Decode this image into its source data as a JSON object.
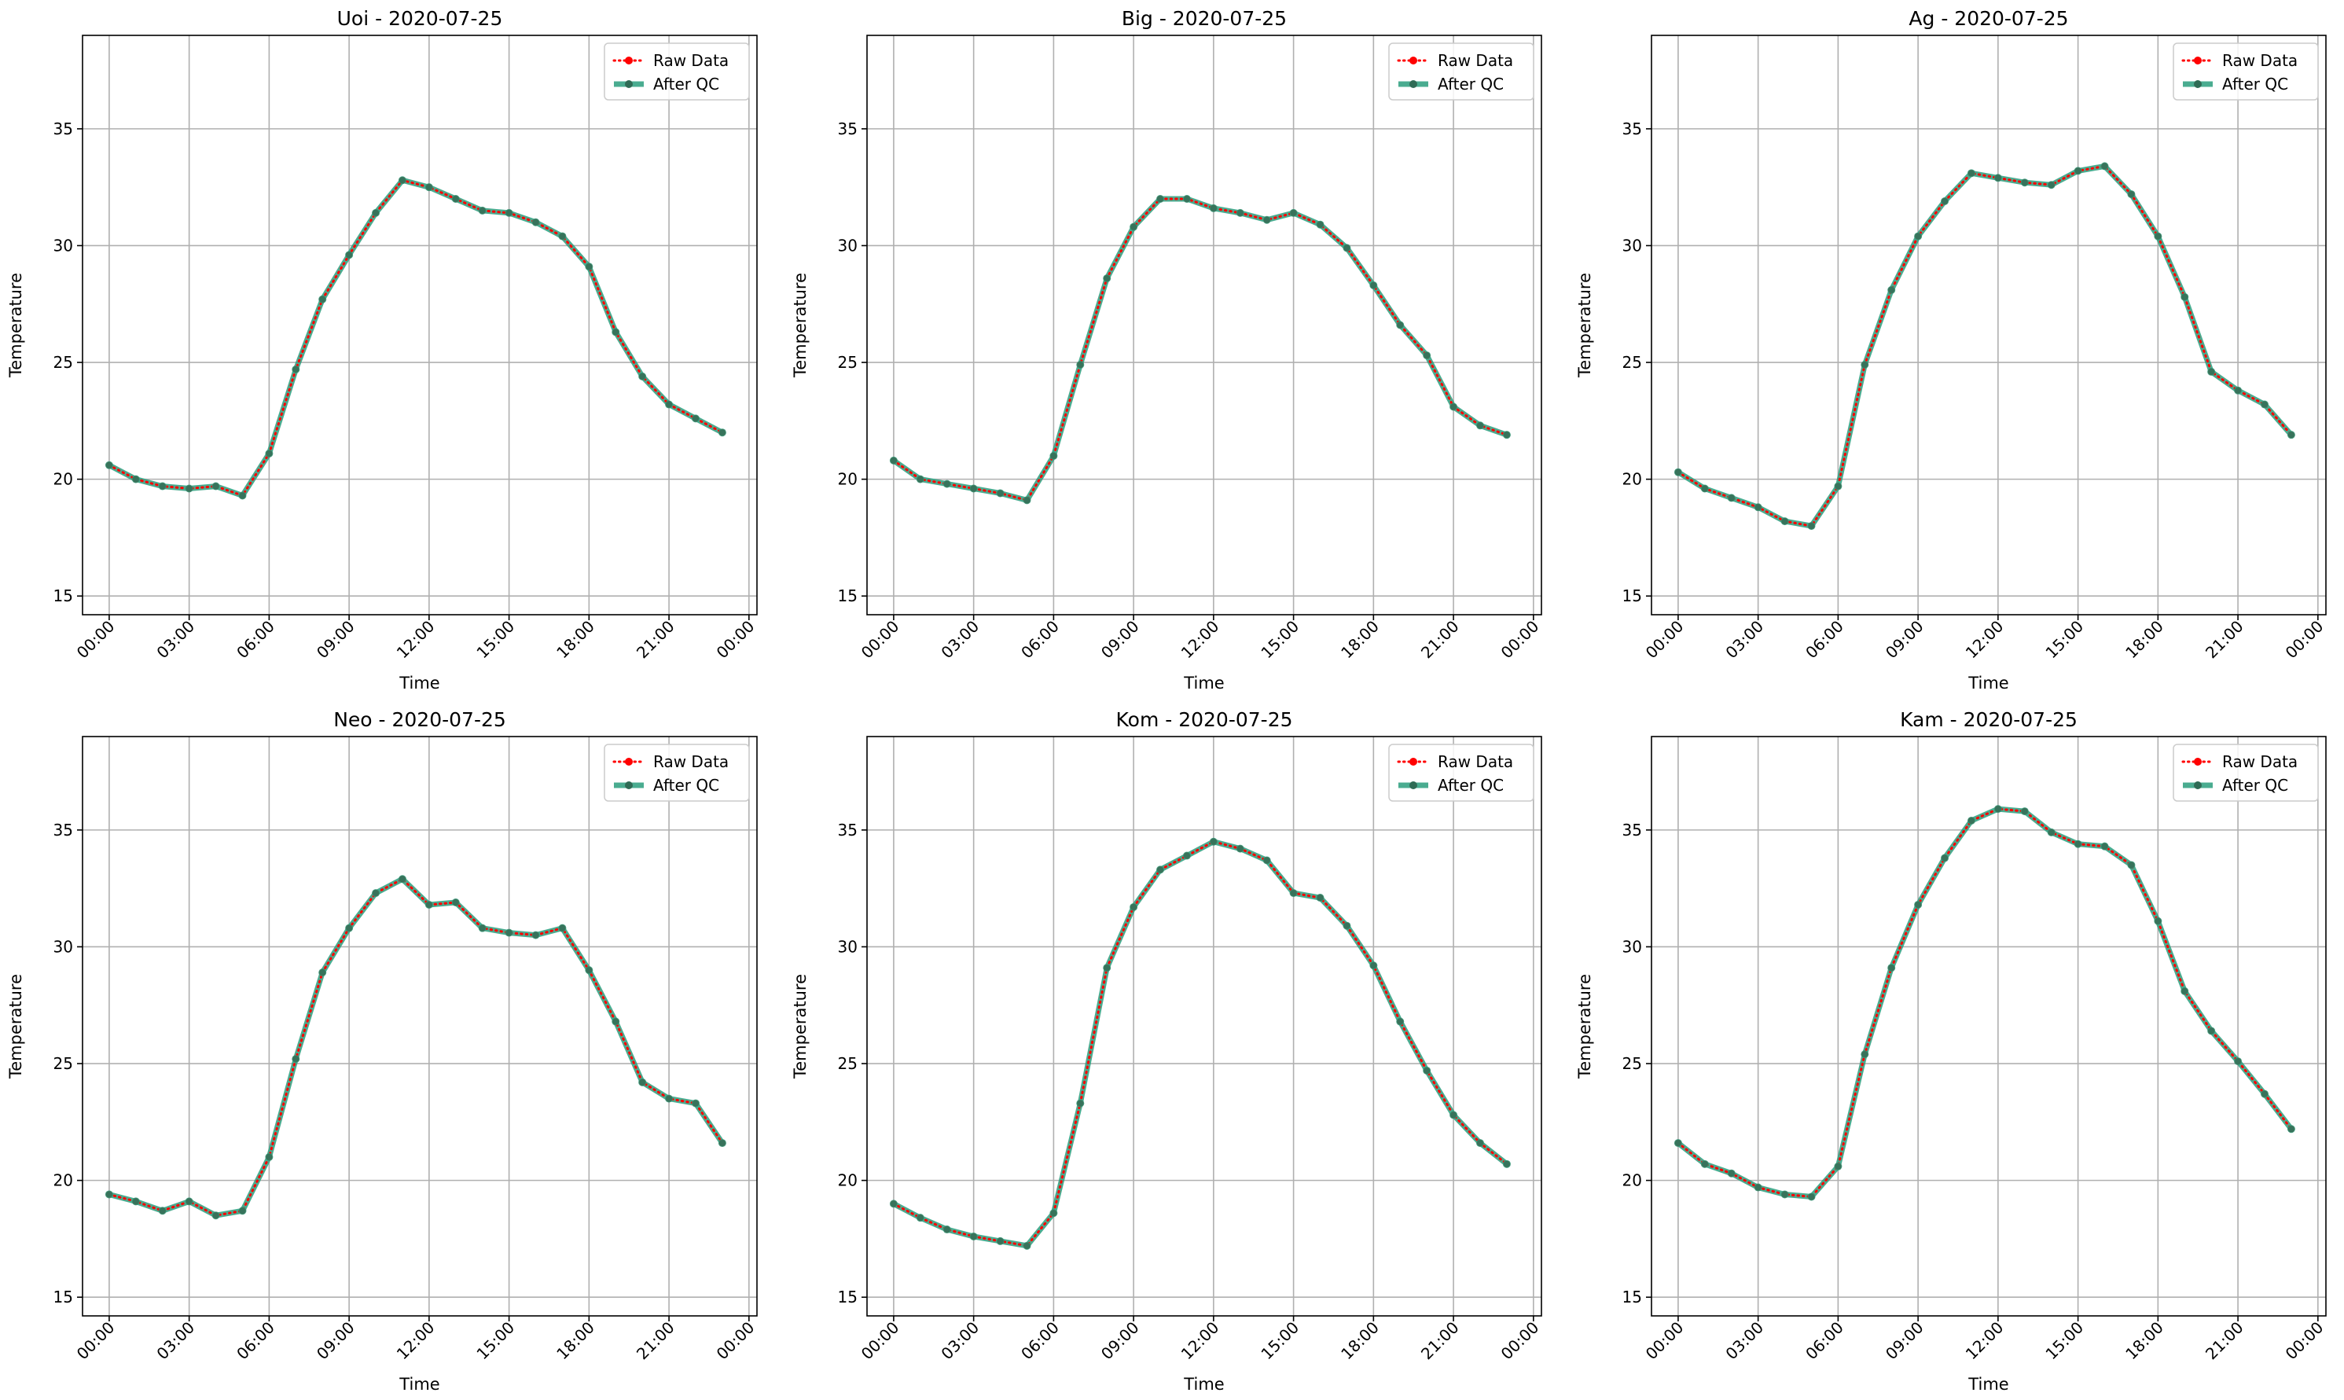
{
  "colors": {
    "raw": "#ff0000",
    "qc": "#2a9d7c",
    "grid": "#b0b0b0",
    "axes": "#000000",
    "legend_border": "#cccccc"
  },
  "chart_data": [
    {
      "type": "line",
      "title": "Uoi - 2020-07-25",
      "xlabel": "Time",
      "ylabel": "Temperature",
      "ylim": [
        14.2,
        39
      ],
      "yticks": [
        15,
        20,
        25,
        30,
        35
      ],
      "xlim": [
        -1,
        24.3
      ],
      "xticks": [
        0,
        3,
        6,
        9,
        12,
        15,
        18,
        21,
        24
      ],
      "xtick_labels": [
        "00:00",
        "03:00",
        "06:00",
        "09:00",
        "12:00",
        "15:00",
        "18:00",
        "21:00",
        "00:00"
      ],
      "grid": true,
      "legend_placement": "top-right",
      "series": [
        {
          "name": "Raw Data",
          "style": "dotted",
          "x": [
            0,
            1,
            2,
            3,
            4,
            5,
            6,
            7,
            8,
            9,
            10,
            11,
            12,
            13,
            14,
            15,
            16,
            17,
            18,
            19,
            20,
            21,
            22,
            23
          ],
          "values": [
            20.6,
            20.0,
            19.7,
            19.6,
            19.7,
            19.3,
            21.1,
            24.7,
            27.7,
            29.6,
            31.4,
            32.8,
            32.5,
            32.0,
            31.5,
            31.4,
            31.0,
            30.4,
            29.1,
            26.3,
            24.4,
            23.2,
            22.6,
            22.0
          ]
        },
        {
          "name": "After QC",
          "style": "solid",
          "x": [
            0,
            1,
            2,
            3,
            4,
            5,
            6,
            7,
            8,
            9,
            10,
            11,
            12,
            13,
            14,
            15,
            16,
            17,
            18,
            19,
            20,
            21,
            22,
            23
          ],
          "values": [
            20.6,
            20.0,
            19.7,
            19.6,
            19.7,
            19.3,
            21.1,
            24.7,
            27.7,
            29.6,
            31.4,
            32.8,
            32.5,
            32.0,
            31.5,
            31.4,
            31.0,
            30.4,
            29.1,
            26.3,
            24.4,
            23.2,
            22.6,
            22.0
          ]
        }
      ]
    },
    {
      "type": "line",
      "title": "Big - 2020-07-25",
      "xlabel": "Time",
      "ylabel": "Temperature",
      "ylim": [
        14.2,
        39
      ],
      "yticks": [
        15,
        20,
        25,
        30,
        35
      ],
      "xlim": [
        -1,
        24.3
      ],
      "xticks": [
        0,
        3,
        6,
        9,
        12,
        15,
        18,
        21,
        24
      ],
      "xtick_labels": [
        "00:00",
        "03:00",
        "06:00",
        "09:00",
        "12:00",
        "15:00",
        "18:00",
        "21:00",
        "00:00"
      ],
      "grid": true,
      "legend_placement": "top-right",
      "series": [
        {
          "name": "Raw Data",
          "style": "dotted",
          "x": [
            0,
            1,
            2,
            3,
            4,
            5,
            6,
            7,
            8,
            9,
            10,
            11,
            12,
            13,
            14,
            15,
            16,
            17,
            18,
            19,
            20,
            21,
            22,
            23
          ],
          "values": [
            20.8,
            20.0,
            19.8,
            19.6,
            19.4,
            19.1,
            21.0,
            24.9,
            28.6,
            30.8,
            32.0,
            32.0,
            31.6,
            31.4,
            31.1,
            31.4,
            30.9,
            29.9,
            28.3,
            26.6,
            25.3,
            23.1,
            22.3,
            21.9
          ]
        },
        {
          "name": "After QC",
          "style": "solid",
          "x": [
            0,
            1,
            2,
            3,
            4,
            5,
            6,
            7,
            8,
            9,
            10,
            11,
            12,
            13,
            14,
            15,
            16,
            17,
            18,
            19,
            20,
            21,
            22,
            23
          ],
          "values": [
            20.8,
            20.0,
            19.8,
            19.6,
            19.4,
            19.1,
            21.0,
            24.9,
            28.6,
            30.8,
            32.0,
            32.0,
            31.6,
            31.4,
            31.1,
            31.4,
            30.9,
            29.9,
            28.3,
            26.6,
            25.3,
            23.1,
            22.3,
            21.9
          ]
        }
      ]
    },
    {
      "type": "line",
      "title": "Ag - 2020-07-25",
      "xlabel": "Time",
      "ylabel": "Temperature",
      "ylim": [
        14.2,
        39
      ],
      "yticks": [
        15,
        20,
        25,
        30,
        35
      ],
      "xlim": [
        -1,
        24.3
      ],
      "xticks": [
        0,
        3,
        6,
        9,
        12,
        15,
        18,
        21,
        24
      ],
      "xtick_labels": [
        "00:00",
        "03:00",
        "06:00",
        "09:00",
        "12:00",
        "15:00",
        "18:00",
        "21:00",
        "00:00"
      ],
      "grid": true,
      "legend_placement": "top-right",
      "series": [
        {
          "name": "Raw Data",
          "style": "dotted",
          "x": [
            0,
            1,
            2,
            3,
            4,
            5,
            6,
            7,
            8,
            9,
            10,
            11,
            12,
            13,
            14,
            15,
            16,
            17,
            18,
            19,
            20,
            21,
            22,
            23
          ],
          "values": [
            20.3,
            19.6,
            19.2,
            18.8,
            18.2,
            18.0,
            19.7,
            24.9,
            28.1,
            30.4,
            31.9,
            33.1,
            32.9,
            32.7,
            32.6,
            33.2,
            33.4,
            32.2,
            30.4,
            27.8,
            24.6,
            23.8,
            23.2,
            21.9
          ]
        },
        {
          "name": "After QC",
          "style": "solid",
          "x": [
            0,
            1,
            2,
            3,
            4,
            5,
            6,
            7,
            8,
            9,
            10,
            11,
            12,
            13,
            14,
            15,
            16,
            17,
            18,
            19,
            20,
            21,
            22,
            23
          ],
          "values": [
            20.3,
            19.6,
            19.2,
            18.8,
            18.2,
            18.0,
            19.7,
            24.9,
            28.1,
            30.4,
            31.9,
            33.1,
            32.9,
            32.7,
            32.6,
            33.2,
            33.4,
            32.2,
            30.4,
            27.8,
            24.6,
            23.8,
            23.2,
            21.9
          ]
        }
      ]
    },
    {
      "type": "line",
      "title": "Neo - 2020-07-25",
      "xlabel": "Time",
      "ylabel": "Temperature",
      "ylim": [
        14.2,
        39
      ],
      "yticks": [
        15,
        20,
        25,
        30,
        35
      ],
      "xlim": [
        -1,
        24.3
      ],
      "xticks": [
        0,
        3,
        6,
        9,
        12,
        15,
        18,
        21,
        24
      ],
      "xtick_labels": [
        "00:00",
        "03:00",
        "06:00",
        "09:00",
        "12:00",
        "15:00",
        "18:00",
        "21:00",
        "00:00"
      ],
      "grid": true,
      "legend_placement": "top-right",
      "series": [
        {
          "name": "Raw Data",
          "style": "dotted",
          "x": [
            0,
            1,
            2,
            3,
            4,
            5,
            6,
            7,
            8,
            9,
            10,
            11,
            12,
            13,
            14,
            15,
            16,
            17,
            18,
            19,
            20,
            21,
            22,
            23
          ],
          "values": [
            19.4,
            19.1,
            18.7,
            19.1,
            18.5,
            18.7,
            21.0,
            25.2,
            28.9,
            30.8,
            32.3,
            32.9,
            31.8,
            31.9,
            30.8,
            30.6,
            30.5,
            30.8,
            29.0,
            26.8,
            24.2,
            23.5,
            23.3,
            21.6
          ]
        },
        {
          "name": "After QC",
          "style": "solid",
          "x": [
            0,
            1,
            2,
            3,
            4,
            5,
            6,
            7,
            8,
            9,
            10,
            11,
            12,
            13,
            14,
            15,
            16,
            17,
            18,
            19,
            20,
            21,
            22,
            23
          ],
          "values": [
            19.4,
            19.1,
            18.7,
            19.1,
            18.5,
            18.7,
            21.0,
            25.2,
            28.9,
            30.8,
            32.3,
            32.9,
            31.8,
            31.9,
            30.8,
            30.6,
            30.5,
            30.8,
            29.0,
            26.8,
            24.2,
            23.5,
            23.3,
            21.6
          ]
        }
      ]
    },
    {
      "type": "line",
      "title": "Kom - 2020-07-25",
      "xlabel": "Time",
      "ylabel": "Temperature",
      "ylim": [
        14.2,
        39
      ],
      "yticks": [
        15,
        20,
        25,
        30,
        35
      ],
      "xlim": [
        -1,
        24.3
      ],
      "xticks": [
        0,
        3,
        6,
        9,
        12,
        15,
        18,
        21,
        24
      ],
      "xtick_labels": [
        "00:00",
        "03:00",
        "06:00",
        "09:00",
        "12:00",
        "15:00",
        "18:00",
        "21:00",
        "00:00"
      ],
      "grid": true,
      "legend_placement": "top-right",
      "series": [
        {
          "name": "Raw Data",
          "style": "dotted",
          "x": [
            0,
            1,
            2,
            3,
            4,
            5,
            6,
            7,
            8,
            9,
            10,
            11,
            12,
            13,
            14,
            15,
            16,
            17,
            18,
            19,
            20,
            21,
            22,
            23
          ],
          "values": [
            19.0,
            18.4,
            17.9,
            17.6,
            17.4,
            17.2,
            18.6,
            23.3,
            29.1,
            31.7,
            33.3,
            33.9,
            34.5,
            34.2,
            33.7,
            32.3,
            32.1,
            30.9,
            29.2,
            26.8,
            24.7,
            22.8,
            21.6,
            20.7
          ]
        },
        {
          "name": "After QC",
          "style": "solid",
          "x": [
            0,
            1,
            2,
            3,
            4,
            5,
            6,
            7,
            8,
            9,
            10,
            11,
            12,
            13,
            14,
            15,
            16,
            17,
            18,
            19,
            20,
            21,
            22,
            23
          ],
          "values": [
            19.0,
            18.4,
            17.9,
            17.6,
            17.4,
            17.2,
            18.6,
            23.3,
            29.1,
            31.7,
            33.3,
            33.9,
            34.5,
            34.2,
            33.7,
            32.3,
            32.1,
            30.9,
            29.2,
            26.8,
            24.7,
            22.8,
            21.6,
            20.7
          ]
        }
      ]
    },
    {
      "type": "line",
      "title": "Kam - 2020-07-25",
      "xlabel": "Time",
      "ylabel": "Temperature",
      "ylim": [
        14.2,
        39
      ],
      "yticks": [
        15,
        20,
        25,
        30,
        35
      ],
      "xlim": [
        -1,
        24.3
      ],
      "xticks": [
        0,
        3,
        6,
        9,
        12,
        15,
        18,
        21,
        24
      ],
      "xtick_labels": [
        "00:00",
        "03:00",
        "06:00",
        "09:00",
        "12:00",
        "15:00",
        "18:00",
        "21:00",
        "00:00"
      ],
      "grid": true,
      "legend_placement": "top-right",
      "series": [
        {
          "name": "Raw Data",
          "style": "dotted",
          "x": [
            0,
            1,
            2,
            3,
            4,
            5,
            6,
            7,
            8,
            9,
            10,
            11,
            12,
            13,
            14,
            15,
            16,
            17,
            18,
            19,
            20,
            21,
            22,
            23
          ],
          "values": [
            21.6,
            20.7,
            20.3,
            19.7,
            19.4,
            19.3,
            20.6,
            25.4,
            29.1,
            31.8,
            33.8,
            35.4,
            35.9,
            35.8,
            34.9,
            34.4,
            34.3,
            33.5,
            31.1,
            28.1,
            26.4,
            25.1,
            23.7,
            22.2
          ]
        },
        {
          "name": "After QC",
          "style": "solid",
          "x": [
            0,
            1,
            2,
            3,
            4,
            5,
            6,
            7,
            8,
            9,
            10,
            11,
            12,
            13,
            14,
            15,
            16,
            17,
            18,
            19,
            20,
            21,
            22,
            23
          ],
          "values": [
            21.6,
            20.7,
            20.3,
            19.7,
            19.4,
            19.3,
            20.6,
            25.4,
            29.1,
            31.8,
            33.8,
            35.4,
            35.9,
            35.8,
            34.9,
            34.4,
            34.3,
            33.5,
            31.1,
            28.1,
            26.4,
            25.1,
            23.7,
            22.2
          ]
        }
      ]
    }
  ]
}
